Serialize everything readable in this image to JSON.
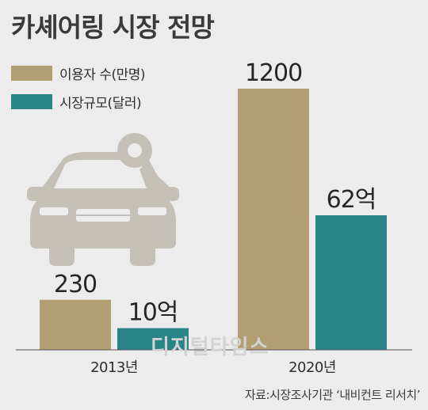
{
  "title": "카셰어링 시장 전망",
  "source": "자료:시장조사기관 ‘내비컨트 리서치’",
  "watermark": "디지털타임스",
  "colors": {
    "users": "#b29e73",
    "market": "#288487",
    "background": "#ececec",
    "car": "#c4c0b7"
  },
  "icons": [
    "car-icon",
    "key-icon"
  ],
  "chart_data": {
    "type": "bar",
    "categories": [
      "2013년",
      "2020년"
    ],
    "series": [
      {
        "name": "이용자 수(만명)",
        "values": [
          230,
          1200
        ],
        "labels": [
          "230",
          "1200"
        ],
        "color": "#b29e73"
      },
      {
        "name": "시장규모(달러)",
        "values": [
          10,
          62
        ],
        "labels": [
          "10억",
          "62억"
        ],
        "color": "#288487"
      }
    ],
    "legend": "top-left",
    "grid": false
  }
}
